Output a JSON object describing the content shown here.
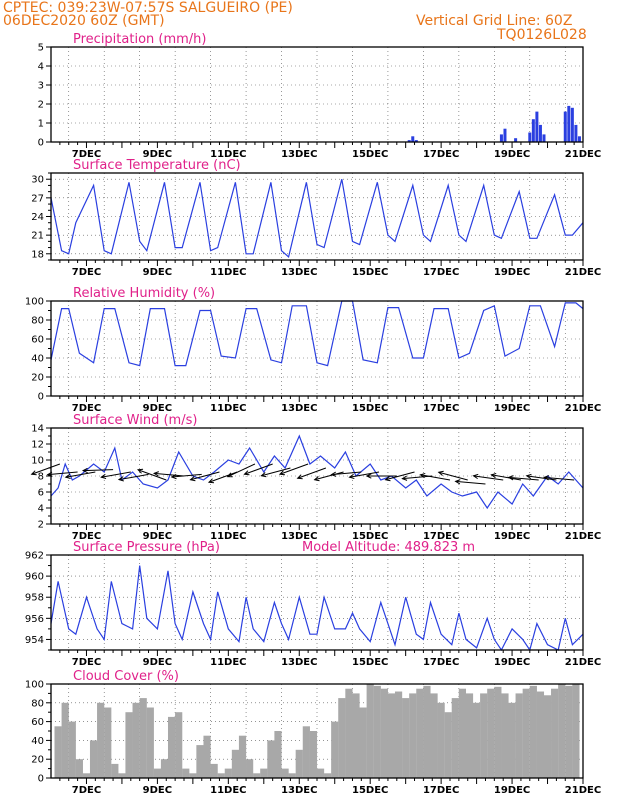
{
  "header": {
    "line1": "CPTEC:  039:23W-07:57S  SALGUEIRO (PE)",
    "line2": "06DEC2020 60Z (GMT)",
    "right1": "Vertical Grid Line: 60Z",
    "right2": "TQ0126L028"
  },
  "colors": {
    "header": "#e8751a",
    "title": "#e0218a",
    "series": "#2a3fe0",
    "cloud": "#a8a8a8",
    "wind_arrow": "#000000"
  },
  "x_ticks": [
    "7DEC",
    "9DEC",
    "11DEC",
    "13DEC",
    "15DEC",
    "17DEC",
    "19DEC",
    "21DEC"
  ],
  "chart_data": [
    {
      "type": "bar",
      "title": "Precipitation (mm/h)",
      "ylim": [
        0,
        5
      ],
      "yticks": [
        "0",
        "1",
        "2",
        "3",
        "4",
        "5"
      ],
      "x": [
        16.1,
        16.2,
        16.3,
        18.7,
        18.8,
        19.1,
        19.5,
        19.6,
        19.7,
        19.8,
        19.9,
        20.5,
        20.6,
        20.7,
        20.8,
        20.9
      ],
      "values": [
        0.1,
        0.3,
        0.1,
        0.4,
        0.7,
        0.2,
        0.5,
        1.2,
        1.6,
        0.9,
        0.4,
        1.6,
        1.9,
        1.8,
        0.9,
        0.3
      ]
    },
    {
      "type": "line",
      "title": "Surface Temperature (nC)",
      "ylim": [
        17,
        31
      ],
      "yticks": [
        "18",
        "21",
        "24",
        "27",
        "30"
      ],
      "x": [
        6.0,
        6.3,
        6.5,
        6.7,
        7.2,
        7.5,
        7.7,
        8.2,
        8.5,
        8.7,
        9.2,
        9.5,
        9.7,
        10.2,
        10.5,
        10.7,
        11.2,
        11.5,
        11.7,
        12.2,
        12.5,
        12.7,
        13.2,
        13.5,
        13.7,
        14.2,
        14.5,
        14.7,
        15.2,
        15.5,
        15.7,
        16.2,
        16.5,
        16.7,
        17.2,
        17.5,
        17.7,
        18.2,
        18.5,
        18.7,
        19.2,
        19.5,
        19.7,
        20.2,
        20.5,
        20.7,
        21.0
      ],
      "values": [
        27.0,
        18.5,
        18.0,
        23.0,
        29.0,
        18.5,
        18.0,
        29.5,
        20.0,
        18.5,
        29.5,
        19.0,
        19.0,
        29.5,
        18.5,
        19.0,
        29.5,
        18.0,
        18.0,
        29.5,
        18.5,
        17.5,
        29.5,
        19.5,
        19.0,
        30.0,
        20.0,
        19.5,
        29.5,
        21.0,
        20.0,
        29.0,
        21.0,
        20.0,
        29.0,
        21.0,
        20.0,
        29.0,
        21.0,
        20.5,
        28.0,
        20.5,
        20.5,
        27.5,
        21.0,
        21.0,
        23.0
      ]
    },
    {
      "type": "line",
      "title": "Relative Humidity (%)",
      "ylim": [
        0,
        100
      ],
      "yticks": [
        "0",
        "10",
        "20",
        "30",
        "40",
        "50",
        "60",
        "70",
        "80",
        "90",
        "100"
      ],
      "x": [
        6.0,
        6.3,
        6.5,
        6.8,
        7.2,
        7.5,
        7.8,
        8.2,
        8.5,
        8.8,
        9.2,
        9.5,
        9.8,
        10.2,
        10.5,
        10.8,
        11.2,
        11.5,
        11.8,
        12.2,
        12.5,
        12.8,
        13.2,
        13.5,
        13.8,
        14.2,
        14.5,
        14.8,
        15.2,
        15.5,
        15.8,
        16.2,
        16.5,
        16.8,
        17.2,
        17.5,
        17.8,
        18.2,
        18.5,
        18.8,
        19.2,
        19.5,
        19.8,
        20.2,
        20.5,
        20.8,
        21.0
      ],
      "values": [
        38,
        92,
        92,
        45,
        35,
        92,
        92,
        35,
        32,
        92,
        92,
        32,
        32,
        90,
        90,
        42,
        40,
        92,
        92,
        38,
        35,
        95,
        95,
        35,
        32,
        100,
        100,
        38,
        35,
        93,
        93,
        40,
        40,
        92,
        92,
        40,
        45,
        90,
        95,
        42,
        50,
        95,
        95,
        52,
        98,
        98,
        92
      ]
    },
    {
      "type": "line",
      "title": "Surface Wind (m/s)",
      "ylim": [
        2,
        14
      ],
      "yticks": [
        "2",
        "4",
        "6",
        "8",
        "10",
        "12",
        "14"
      ],
      "x": [
        6.0,
        6.2,
        6.4,
        6.6,
        6.8,
        7.2,
        7.5,
        7.8,
        8.0,
        8.3,
        8.6,
        9.0,
        9.3,
        9.6,
        10.0,
        10.3,
        10.6,
        11.0,
        11.3,
        11.6,
        12.0,
        12.3,
        12.6,
        13.0,
        13.3,
        13.6,
        14.0,
        14.3,
        14.6,
        15.0,
        15.3,
        15.6,
        16.0,
        16.3,
        16.6,
        17.0,
        17.3,
        17.6,
        18.0,
        18.3,
        18.6,
        19.0,
        19.3,
        19.6,
        20.0,
        20.3,
        20.6,
        21.0
      ],
      "values": [
        5.5,
        6.5,
        9.5,
        7.5,
        8.0,
        9.5,
        8.5,
        11.5,
        7.5,
        8.5,
        7.0,
        6.5,
        7.5,
        11.0,
        8.0,
        7.5,
        8.5,
        10.0,
        9.5,
        11.5,
        8.5,
        10.5,
        9.0,
        13.0,
        9.5,
        10.5,
        9.0,
        11.0,
        8.0,
        9.5,
        7.5,
        8.0,
        6.5,
        7.5,
        5.5,
        7.0,
        6.0,
        5.5,
        6.0,
        4.0,
        6.0,
        4.5,
        7.0,
        5.5,
        8.0,
        7.0,
        8.5,
        6.5
      ],
      "arrows_x": [
        6.25,
        6.75,
        7.25,
        7.75,
        8.25,
        8.75,
        9.25,
        9.75,
        10.25,
        10.75,
        11.25,
        11.75,
        12.25,
        12.75,
        13.25,
        13.75,
        14.25,
        14.75,
        15.25,
        15.75,
        16.25,
        16.75,
        17.25,
        17.75,
        18.25,
        18.75,
        19.25,
        19.75,
        20.25,
        20.75
      ],
      "arrows_speed": [
        9.5,
        8.5,
        8.5,
        8.8,
        8.5,
        8.2,
        7.5,
        8.0,
        8.2,
        8.5,
        8.5,
        9.5,
        9.5,
        9.0,
        9.5,
        9.0,
        8.5,
        8.5,
        8.5,
        8.0,
        8.5,
        8.0,
        7.5,
        7.5,
        7.0,
        7.5,
        7.5,
        7.5,
        7.5,
        7.5
      ],
      "arrows_dir": [
        200,
        185,
        190,
        182,
        190,
        190,
        160,
        175,
        185,
        195,
        200,
        205,
        200,
        195,
        200,
        200,
        195,
        185,
        190,
        180,
        195,
        185,
        170,
        165,
        175,
        172,
        170,
        175,
        172,
        175
      ]
    },
    {
      "type": "line",
      "title": "Surface Pressure (hPa)",
      "annotation": "Model Altitude: 489.823 m",
      "ylim": [
        953,
        962
      ],
      "yticks": [
        "954",
        "956",
        "958",
        "960",
        "962"
      ],
      "x": [
        6.0,
        6.2,
        6.5,
        6.7,
        7.0,
        7.3,
        7.5,
        7.7,
        8.0,
        8.3,
        8.5,
        8.7,
        9.0,
        9.3,
        9.5,
        9.7,
        10.0,
        10.3,
        10.5,
        10.7,
        11.0,
        11.3,
        11.5,
        11.7,
        12.0,
        12.3,
        12.5,
        12.7,
        13.0,
        13.3,
        13.5,
        13.7,
        14.0,
        14.3,
        14.5,
        14.7,
        15.0,
        15.3,
        15.5,
        15.7,
        16.0,
        16.3,
        16.5,
        16.7,
        17.0,
        17.3,
        17.5,
        17.7,
        18.0,
        18.3,
        18.5,
        18.7,
        19.0,
        19.3,
        19.5,
        19.7,
        20.0,
        20.3,
        20.5,
        20.7,
        21.0
      ],
      "values": [
        955.5,
        959.5,
        955.0,
        954.5,
        958.0,
        955.0,
        954.0,
        959.5,
        955.5,
        955.0,
        961.0,
        956.0,
        955.0,
        960.5,
        955.5,
        954.0,
        958.5,
        955.5,
        954.0,
        958.5,
        955.0,
        953.8,
        958.0,
        955.0,
        953.8,
        957.5,
        955.5,
        954.0,
        958.0,
        954.5,
        954.5,
        958.0,
        955.0,
        955.0,
        956.5,
        955.0,
        953.8,
        957.5,
        955.5,
        953.5,
        958.0,
        954.5,
        954.0,
        957.5,
        954.5,
        953.5,
        956.5,
        954.0,
        953.2,
        956.0,
        954.0,
        953.0,
        955.0,
        954.0,
        953.0,
        955.5,
        953.5,
        953.0,
        956.0,
        953.5,
        954.5
      ]
    },
    {
      "type": "bar",
      "title": "Cloud Cover (%)",
      "ylim": [
        0,
        100
      ],
      "yticks": [
        "0",
        "10",
        "20",
        "30",
        "40",
        "50",
        "60",
        "70",
        "80",
        "90",
        "100"
      ],
      "x": [
        6.2,
        6.4,
        6.6,
        6.8,
        7.0,
        7.2,
        7.4,
        7.6,
        7.8,
        8.0,
        8.2,
        8.4,
        8.6,
        8.8,
        9.0,
        9.2,
        9.4,
        9.6,
        9.8,
        10.0,
        10.2,
        10.4,
        10.6,
        10.8,
        11.0,
        11.2,
        11.4,
        11.6,
        11.8,
        12.0,
        12.2,
        12.4,
        12.6,
        12.8,
        13.0,
        13.2,
        13.4,
        13.6,
        13.8,
        14.0,
        14.2,
        14.4,
        14.6,
        14.8,
        15.0,
        15.2,
        15.4,
        15.6,
        15.8,
        16.0,
        16.2,
        16.4,
        16.6,
        16.8,
        17.0,
        17.2,
        17.4,
        17.6,
        17.8,
        18.0,
        18.2,
        18.4,
        18.6,
        18.8,
        19.0,
        19.2,
        19.4,
        19.6,
        19.8,
        20.0,
        20.2,
        20.4,
        20.6,
        20.8
      ],
      "values": [
        55,
        80,
        60,
        20,
        5,
        40,
        80,
        75,
        15,
        5,
        70,
        80,
        85,
        75,
        10,
        20,
        65,
        70,
        10,
        5,
        35,
        45,
        15,
        5,
        10,
        30,
        45,
        20,
        5,
        10,
        40,
        50,
        10,
        5,
        30,
        55,
        50,
        10,
        5,
        60,
        85,
        95,
        90,
        75,
        100,
        98,
        95,
        90,
        92,
        85,
        90,
        95,
        98,
        90,
        80,
        70,
        85,
        95,
        90,
        80,
        90,
        95,
        97,
        90,
        80,
        90,
        95,
        98,
        92,
        88,
        95,
        100,
        98,
        100
      ]
    }
  ]
}
